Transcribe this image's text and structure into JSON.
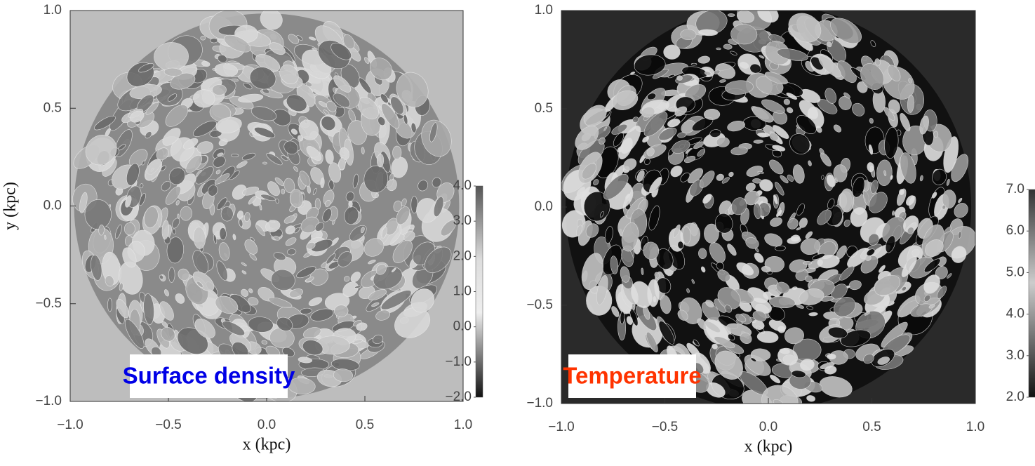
{
  "chart_data": [
    {
      "type": "map",
      "title": "Surface density",
      "title_color": "#0000e6",
      "xlabel": "x (kpc)",
      "ylabel": "y (kpc)",
      "xlim": [
        -1,
        1
      ],
      "ylim": [
        -1,
        1
      ],
      "xticks": [
        {
          "value": -1,
          "label": "−1.0"
        },
        {
          "value": -0.5,
          "label": "−0.5"
        },
        {
          "value": 0,
          "label": "0.0"
        },
        {
          "value": 0.5,
          "label": "0.5"
        },
        {
          "value": 1,
          "label": "1.0"
        }
      ],
      "yticks": [
        {
          "value": -1,
          "label": "−1.0"
        },
        {
          "value": -0.5,
          "label": "−0.5"
        },
        {
          "value": 0,
          "label": "0.0"
        },
        {
          "value": 0.5,
          "label": "0.5"
        },
        {
          "value": 1,
          "label": "1.0"
        }
      ],
      "colorbar_lim": [
        -2,
        4
      ],
      "colorbar_ticks": [
        {
          "value": 4,
          "label": "4.0"
        },
        {
          "value": 3,
          "label": "3.0"
        },
        {
          "value": 2,
          "label": "2.0"
        },
        {
          "value": 1,
          "label": "1.0"
        },
        {
          "value": 0,
          "label": "0.0"
        },
        {
          "value": -1,
          "label": "−1.0"
        },
        {
          "value": -2,
          "label": "−2.0"
        }
      ]
    },
    {
      "type": "map",
      "title": "Temperature",
      "title_color": "#ff3300",
      "xlabel": "x (kpc)",
      "xlim": [
        -1,
        1
      ],
      "ylim": [
        -1,
        1
      ],
      "xticks": [
        {
          "value": -1,
          "label": "−1.0"
        },
        {
          "value": -0.5,
          "label": "−0.5"
        },
        {
          "value": 0,
          "label": "0.0"
        },
        {
          "value": 0.5,
          "label": "0.5"
        },
        {
          "value": 1,
          "label": "1.0"
        }
      ],
      "yticks": [
        {
          "value": -1,
          "label": "−1.0"
        },
        {
          "value": -0.5,
          "label": "−0.5"
        },
        {
          "value": 0,
          "label": "0.0"
        },
        {
          "value": 0.5,
          "label": "0.5"
        },
        {
          "value": 1,
          "label": "1.0"
        }
      ],
      "colorbar_lim": [
        2,
        7
      ],
      "colorbar_ticks": [
        {
          "value": 7,
          "label": "7.0"
        },
        {
          "value": 6,
          "label": "6.0"
        },
        {
          "value": 5,
          "label": "5.0"
        },
        {
          "value": 4,
          "label": "4.0"
        },
        {
          "value": 3,
          "label": "3.0"
        },
        {
          "value": 2,
          "label": "2.0"
        }
      ]
    }
  ]
}
